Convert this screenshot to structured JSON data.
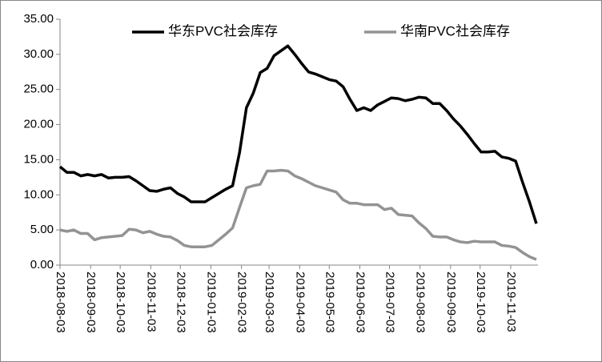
{
  "chart_data": {
    "type": "line",
    "x": [
      "2018-08-03",
      "2018-08-10",
      "2018-08-17",
      "2018-08-24",
      "2018-08-31",
      "2018-09-07",
      "2018-09-14",
      "2018-09-21",
      "2018-09-28",
      "2018-10-05",
      "2018-10-12",
      "2018-10-19",
      "2018-10-26",
      "2018-11-02",
      "2018-11-09",
      "2018-11-16",
      "2018-11-23",
      "2018-11-30",
      "2018-12-07",
      "2018-12-14",
      "2018-12-21",
      "2018-12-28",
      "2019-01-04",
      "2019-01-11",
      "2019-01-18",
      "2019-01-25",
      "2019-02-01",
      "2019-02-08",
      "2019-02-15",
      "2019-02-22",
      "2019-03-01",
      "2019-03-08",
      "2019-03-15",
      "2019-03-22",
      "2019-03-29",
      "2019-04-05",
      "2019-04-12",
      "2019-04-19",
      "2019-04-26",
      "2019-05-03",
      "2019-05-10",
      "2019-05-17",
      "2019-05-24",
      "2019-05-31",
      "2019-06-07",
      "2019-06-14",
      "2019-06-21",
      "2019-06-28",
      "2019-07-05",
      "2019-07-12",
      "2019-07-19",
      "2019-07-26",
      "2019-08-02",
      "2019-08-09",
      "2019-08-16",
      "2019-08-23",
      "2019-08-30",
      "2019-09-06",
      "2019-09-13",
      "2019-09-20",
      "2019-09-27",
      "2019-10-04",
      "2019-10-11",
      "2019-10-18",
      "2019-10-25",
      "2019-11-01",
      "2019-11-08",
      "2019-11-15",
      "2019-11-22",
      "2019-11-29"
    ],
    "series": [
      {
        "name": "华东PVC社会库存",
        "color": "#000000",
        "values": [
          14.0,
          13.2,
          13.2,
          12.7,
          12.9,
          12.7,
          12.9,
          12.4,
          12.5,
          12.5,
          12.6,
          12.0,
          11.3,
          10.6,
          10.5,
          10.8,
          11.0,
          10.2,
          9.7,
          9.0,
          9.0,
          9.0,
          9.6,
          10.2,
          10.8,
          11.3,
          16.0,
          22.4,
          24.5,
          27.4,
          28.0,
          29.8,
          30.5,
          31.2,
          30.0,
          28.7,
          27.5,
          27.2,
          26.8,
          26.4,
          26.2,
          25.4,
          23.6,
          22.0,
          22.4,
          22.0,
          22.8,
          23.3,
          23.8,
          23.7,
          23.4,
          23.6,
          23.9,
          23.8,
          23.0,
          23.0,
          22.0,
          20.8,
          19.8,
          18.6,
          17.3,
          16.1,
          16.1,
          16.2,
          15.4,
          15.2,
          14.8,
          11.8,
          9.0,
          5.9
        ]
      },
      {
        "name": "华南PVC社会库存",
        "color": "#939393",
        "values": [
          5.0,
          4.8,
          5.0,
          4.5,
          4.5,
          3.6,
          3.9,
          4.0,
          4.1,
          4.2,
          5.1,
          5.0,
          4.6,
          4.8,
          4.4,
          4.1,
          4.0,
          3.5,
          2.8,
          2.6,
          2.6,
          2.6,
          2.8,
          3.6,
          4.4,
          5.3,
          8.2,
          11.0,
          11.3,
          11.5,
          13.4,
          13.4,
          13.5,
          13.4,
          12.7,
          12.3,
          11.8,
          11.3,
          11.0,
          10.7,
          10.4,
          9.3,
          8.8,
          8.8,
          8.6,
          8.6,
          8.6,
          7.9,
          8.1,
          7.2,
          7.1,
          7.0,
          6.0,
          5.2,
          4.1,
          4.0,
          4.0,
          3.6,
          3.3,
          3.2,
          3.4,
          3.3,
          3.3,
          3.3,
          2.8,
          2.7,
          2.5,
          1.8,
          1.2,
          0.8
        ]
      }
    ],
    "xlim": [
      "2018-08-03",
      "2019-11-29"
    ],
    "xticks": [
      "2018-08-03",
      "2018-09-03",
      "2018-10-03",
      "2018-11-03",
      "2018-12-03",
      "2019-01-03",
      "2019-02-03",
      "2019-03-03",
      "2019-04-03",
      "2019-05-03",
      "2019-06-03",
      "2019-07-03",
      "2019-08-03",
      "2019-09-03",
      "2019-10-03",
      "2019-11-03"
    ],
    "ylim": [
      0,
      35
    ],
    "yticks": [
      {
        "value": 0,
        "label": "0.00"
      },
      {
        "value": 5,
        "label": "5.00"
      },
      {
        "value": 10,
        "label": "10.00"
      },
      {
        "value": 15,
        "label": "15.00"
      },
      {
        "value": 20,
        "label": "20.00"
      },
      {
        "value": 25,
        "label": "25.00"
      },
      {
        "value": 30,
        "label": "30.00"
      },
      {
        "value": 35,
        "label": "35.00"
      }
    ],
    "grid": false,
    "legend": "top"
  }
}
